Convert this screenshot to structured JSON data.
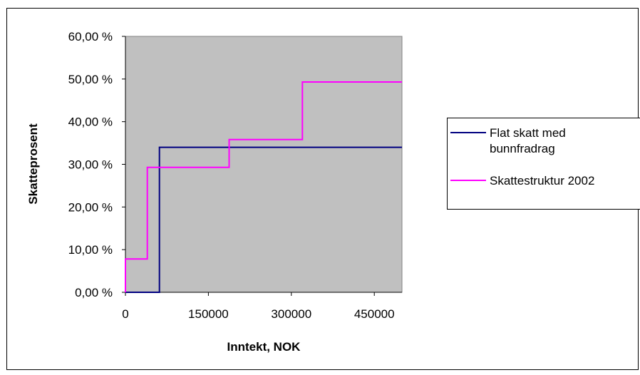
{
  "chart_data": {
    "type": "line",
    "step": true,
    "xlabel": "Inntekt, NOK",
    "ylabel": "Skatteprosent",
    "xlim": [
      0,
      500000
    ],
    "ylim": [
      0,
      60
    ],
    "x_ticks": [
      0,
      150000,
      300000,
      450000
    ],
    "x_tick_labels": [
      "0",
      "150000",
      "300000",
      "450000"
    ],
    "y_ticks": [
      0,
      10,
      20,
      30,
      40,
      50,
      60
    ],
    "y_tick_labels": [
      "0,00 %",
      "10,00 %",
      "20,00 %",
      "30,00 %",
      "40,00 %",
      "50,00 %",
      "60,00 %"
    ],
    "grid": false,
    "legend": "right",
    "plot_background": "#c0c0c0",
    "series": [
      {
        "name": "Flat skatt med bunnfradrag",
        "color": "#000080",
        "points": [
          [
            0,
            0
          ],
          [
            61500,
            0
          ],
          [
            61500,
            34
          ],
          [
            500000,
            34
          ]
        ]
      },
      {
        "name": "Skattestruktur 2002",
        "color": "#ff00ff",
        "points": [
          [
            0,
            0
          ],
          [
            0,
            7.8
          ],
          [
            39500,
            7.8
          ],
          [
            39500,
            29.3
          ],
          [
            187500,
            29.3
          ],
          [
            187500,
            35.8
          ],
          [
            320000,
            35.8
          ],
          [
            320000,
            49.3
          ],
          [
            500000,
            49.3
          ]
        ]
      }
    ]
  }
}
